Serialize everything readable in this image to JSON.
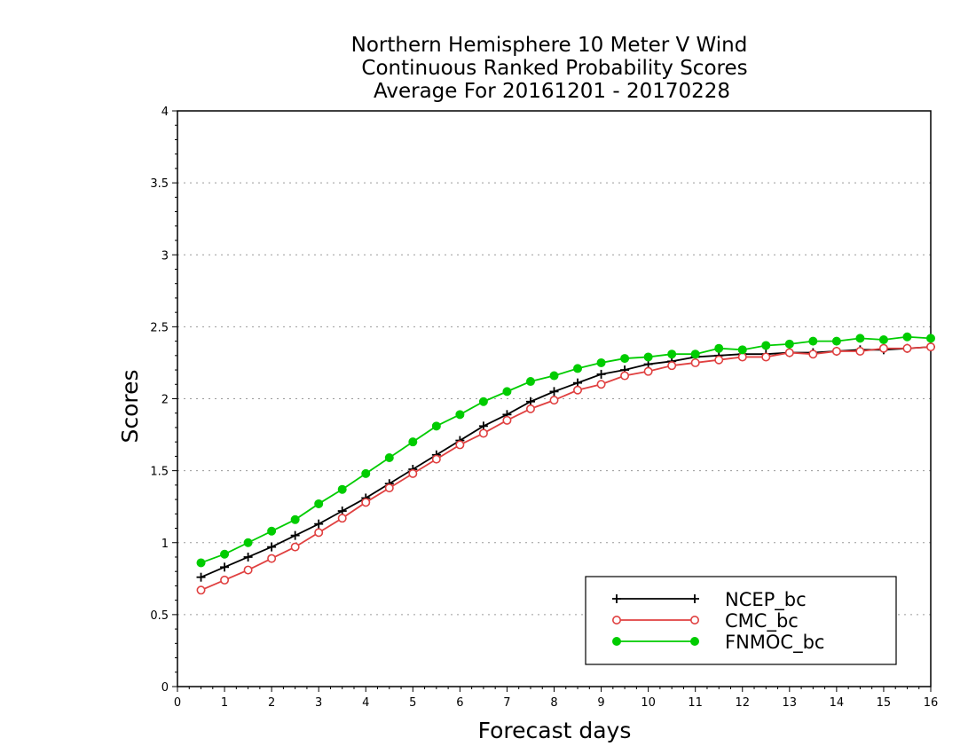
{
  "chart_data": {
    "type": "line",
    "title_lines": [
      "Northern Hemisphere 10 Meter V Wind",
      "Continuous Ranked Probability Scores",
      "Average For 20161201 - 20170228"
    ],
    "xlabel": "Forecast days",
    "ylabel": "Scores",
    "xlim": [
      0,
      16
    ],
    "ylim": [
      0,
      4
    ],
    "xticks": [
      "0",
      "1",
      "2",
      "3",
      "4",
      "5",
      "6",
      "7",
      "8",
      "9",
      "10",
      "11",
      "12",
      "13",
      "14",
      "15",
      "16"
    ],
    "yticks": [
      "0",
      "0.5",
      "1",
      "1.5",
      "2",
      "2.5",
      "3",
      "3.5",
      "4"
    ],
    "grid": "horizontal-dotted",
    "legend_position": "bottom-right",
    "x": [
      0.5,
      1,
      1.5,
      2,
      2.5,
      3,
      3.5,
      4,
      4.5,
      5,
      5.5,
      6,
      6.5,
      7,
      7.5,
      8,
      8.5,
      9,
      9.5,
      10,
      10.5,
      11,
      11.5,
      12,
      12.5,
      13,
      13.5,
      14,
      14.5,
      15,
      15.5,
      16
    ],
    "series": [
      {
        "name": "NCEP_bc",
        "color": "#000000",
        "marker": "plus",
        "values": [
          0.76,
          0.83,
          0.9,
          0.97,
          1.05,
          1.13,
          1.22,
          1.31,
          1.41,
          1.51,
          1.61,
          1.71,
          1.81,
          1.89,
          1.98,
          2.05,
          2.11,
          2.17,
          2.2,
          2.24,
          2.26,
          2.29,
          2.3,
          2.31,
          2.31,
          2.32,
          2.32,
          2.33,
          2.34,
          2.34,
          2.35,
          2.36
        ]
      },
      {
        "name": "CMC_bc",
        "color": "#e04040",
        "marker": "open-circle",
        "values": [
          0.67,
          0.74,
          0.81,
          0.89,
          0.97,
          1.07,
          1.17,
          1.28,
          1.38,
          1.48,
          1.58,
          1.68,
          1.76,
          1.85,
          1.93,
          1.99,
          2.06,
          2.1,
          2.16,
          2.19,
          2.23,
          2.25,
          2.27,
          2.29,
          2.29,
          2.32,
          2.31,
          2.33,
          2.33,
          2.35,
          2.35,
          2.36
        ]
      },
      {
        "name": "FNMOC_bc",
        "color": "#00cc00",
        "marker": "filled-circle",
        "values": [
          0.86,
          0.92,
          1.0,
          1.08,
          1.16,
          1.27,
          1.37,
          1.48,
          1.59,
          1.7,
          1.81,
          1.89,
          1.98,
          2.05,
          2.12,
          2.16,
          2.21,
          2.25,
          2.28,
          2.29,
          2.31,
          2.31,
          2.35,
          2.34,
          2.37,
          2.38,
          2.4,
          2.4,
          2.42,
          2.41,
          2.43,
          2.42
        ]
      }
    ]
  }
}
